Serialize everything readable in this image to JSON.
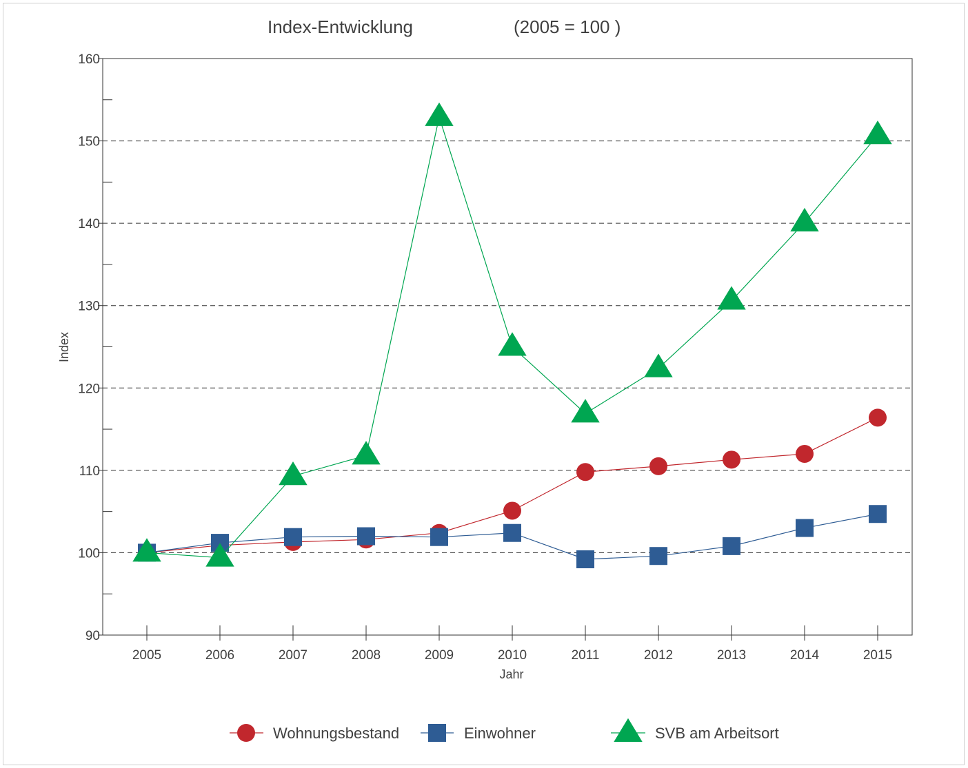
{
  "chart_data": {
    "type": "line",
    "title": "Index-Entwicklung",
    "subtitle": "(2005 = 100 )",
    "xlabel": "Jahr",
    "ylabel": "Index",
    "categories": [
      "2005",
      "2006",
      "2007",
      "2008",
      "2009",
      "2010",
      "2011",
      "2012",
      "2013",
      "2014",
      "2015"
    ],
    "ylim": [
      90,
      160
    ],
    "yticks": [
      90,
      100,
      110,
      120,
      130,
      140,
      150,
      160
    ],
    "yticks_minor": [
      95,
      105,
      115,
      125,
      135,
      145,
      155
    ],
    "gridlines": [
      100,
      110,
      120,
      130,
      140,
      150
    ],
    "grid": "horizontal dashed",
    "legend_position": "bottom",
    "series": [
      {
        "name": "Wohnungsbestand",
        "marker": "circle",
        "color": "#c1272d",
        "values": [
          100,
          100.9,
          101.3,
          101.6,
          102.4,
          105.1,
          109.8,
          110.5,
          111.3,
          112.0,
          116.4
        ]
      },
      {
        "name": "Einwohner",
        "marker": "square",
        "color": "#2e5c94",
        "values": [
          100,
          101.2,
          101.9,
          102.0,
          101.9,
          102.4,
          99.2,
          99.6,
          100.8,
          103.0,
          104.7
        ]
      },
      {
        "name": "SVB am Arbeitsort",
        "marker": "triangle",
        "color": "#00a651",
        "values": [
          100,
          99.4,
          109.3,
          111.8,
          152.9,
          125.0,
          116.9,
          122.4,
          130.6,
          140.1,
          150.7
        ]
      }
    ]
  }
}
